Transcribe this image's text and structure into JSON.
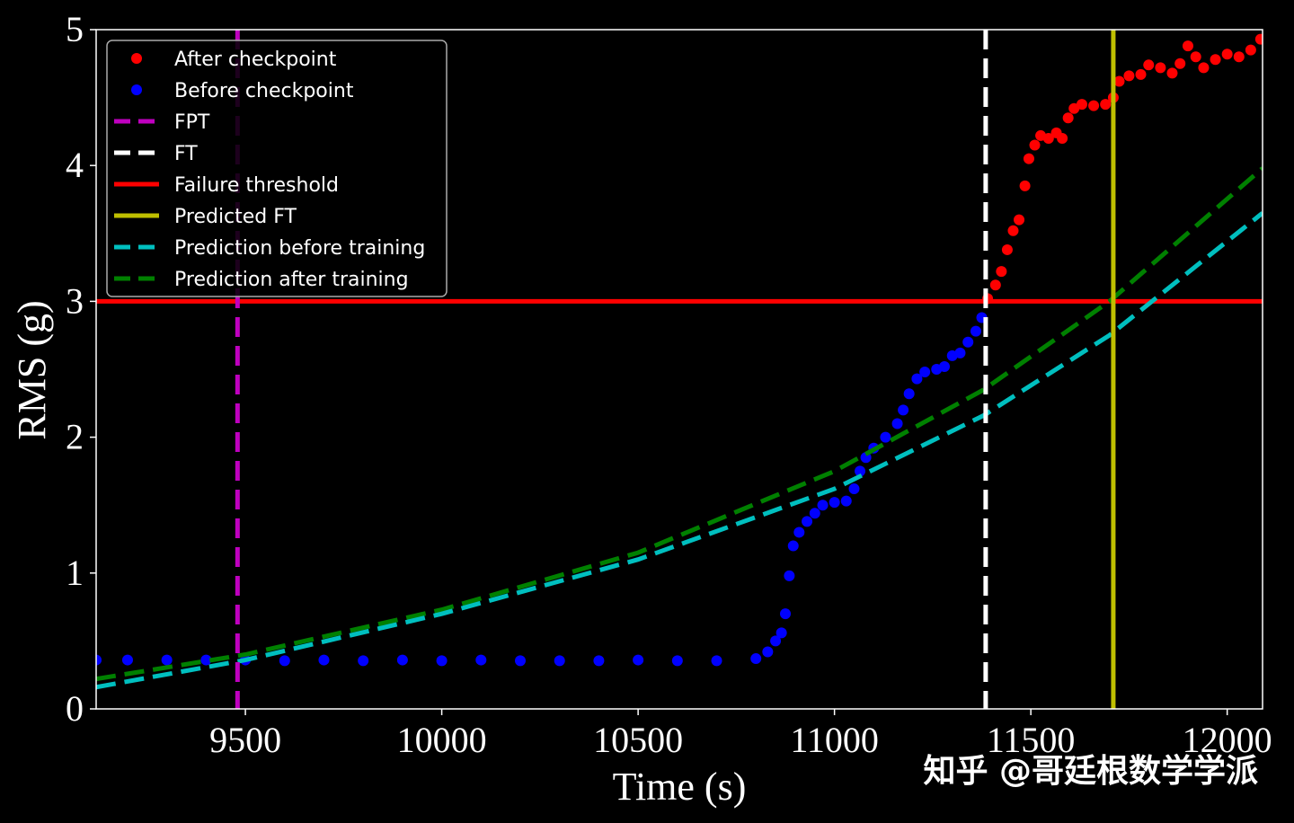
{
  "chart_data": {
    "type": "line",
    "xlabel": "Time (s)",
    "ylabel": "RMS (g)",
    "xlim": [
      9120,
      12090
    ],
    "ylim": [
      0,
      5
    ],
    "xticks": [
      9500,
      10000,
      10500,
      11000,
      11500,
      12000
    ],
    "yticks": [
      0,
      1,
      2,
      3,
      4,
      5
    ],
    "grid": false,
    "legend_position": "top-left",
    "background": "#000000",
    "legend": [
      {
        "label": "After checkpoint",
        "kind": "scatter",
        "color": "#ff0000"
      },
      {
        "label": "Before checkpoint",
        "kind": "scatter",
        "color": "#0000ff"
      },
      {
        "label": "FPT",
        "kind": "dashed",
        "color": "#bf00bf"
      },
      {
        "label": "FT",
        "kind": "dashed",
        "color": "#ffffff"
      },
      {
        "label": "Failure threshold",
        "kind": "solid",
        "color": "#ff0000"
      },
      {
        "label": "Predicted FT",
        "kind": "solid",
        "color": "#bfbf00"
      },
      {
        "label": "Prediction before training",
        "kind": "dashed",
        "color": "#00bfbf"
      },
      {
        "label": "Prediction after training",
        "kind": "dashed",
        "color": "#008000"
      }
    ],
    "series": {
      "before_checkpoint": {
        "color": "#0000ff",
        "points": [
          [
            9120,
            0.36
          ],
          [
            9200,
            0.36
          ],
          [
            9300,
            0.36
          ],
          [
            9400,
            0.36
          ],
          [
            9500,
            0.36
          ],
          [
            9600,
            0.355
          ],
          [
            9700,
            0.36
          ],
          [
            9800,
            0.355
          ],
          [
            9900,
            0.36
          ],
          [
            10000,
            0.355
          ],
          [
            10100,
            0.36
          ],
          [
            10200,
            0.355
          ],
          [
            10300,
            0.355
          ],
          [
            10400,
            0.355
          ],
          [
            10500,
            0.36
          ],
          [
            10600,
            0.355
          ],
          [
            10700,
            0.355
          ],
          [
            10800,
            0.37
          ],
          [
            10830,
            0.42
          ],
          [
            10850,
            0.5
          ],
          [
            10865,
            0.56
          ],
          [
            10875,
            0.7
          ],
          [
            10885,
            0.98
          ],
          [
            10895,
            1.2
          ],
          [
            10910,
            1.3
          ],
          [
            10930,
            1.38
          ],
          [
            10950,
            1.44
          ],
          [
            10970,
            1.5
          ],
          [
            11000,
            1.52
          ],
          [
            11030,
            1.53
          ],
          [
            11050,
            1.62
          ],
          [
            11065,
            1.75
          ],
          [
            11080,
            1.85
          ],
          [
            11100,
            1.92
          ],
          [
            11130,
            2.0
          ],
          [
            11160,
            2.1
          ],
          [
            11175,
            2.2
          ],
          [
            11190,
            2.32
          ],
          [
            11210,
            2.43
          ],
          [
            11230,
            2.48
          ],
          [
            11260,
            2.5
          ],
          [
            11280,
            2.52
          ],
          [
            11300,
            2.6
          ],
          [
            11320,
            2.62
          ],
          [
            11340,
            2.7
          ],
          [
            11360,
            2.78
          ],
          [
            11375,
            2.88
          ]
        ]
      },
      "after_checkpoint": {
        "color": "#ff0000",
        "points": [
          [
            11390,
            3.02
          ],
          [
            11410,
            3.12
          ],
          [
            11425,
            3.22
          ],
          [
            11440,
            3.38
          ],
          [
            11455,
            3.52
          ],
          [
            11470,
            3.6
          ],
          [
            11485,
            3.85
          ],
          [
            11495,
            4.05
          ],
          [
            11510,
            4.15
          ],
          [
            11525,
            4.22
          ],
          [
            11545,
            4.2
          ],
          [
            11565,
            4.24
          ],
          [
            11580,
            4.2
          ],
          [
            11595,
            4.35
          ],
          [
            11610,
            4.42
          ],
          [
            11630,
            4.45
          ],
          [
            11660,
            4.44
          ],
          [
            11690,
            4.45
          ],
          [
            11710,
            4.5
          ],
          [
            11725,
            4.62
          ],
          [
            11750,
            4.66
          ],
          [
            11780,
            4.67
          ],
          [
            11800,
            4.74
          ],
          [
            11830,
            4.72
          ],
          [
            11860,
            4.68
          ],
          [
            11880,
            4.75
          ],
          [
            11900,
            4.88
          ],
          [
            11920,
            4.8
          ],
          [
            11940,
            4.72
          ],
          [
            11970,
            4.78
          ],
          [
            12000,
            4.82
          ],
          [
            12030,
            4.8
          ],
          [
            12060,
            4.85
          ],
          [
            12085,
            4.93
          ]
        ]
      },
      "prediction_before_training": {
        "color": "#00bfbf",
        "points": [
          [
            9120,
            0.16
          ],
          [
            9500,
            0.36
          ],
          [
            10000,
            0.7
          ],
          [
            10500,
            1.1
          ],
          [
            11000,
            1.62
          ],
          [
            11380,
            2.16
          ],
          [
            11700,
            2.75
          ],
          [
            12090,
            3.65
          ]
        ]
      },
      "prediction_after_training": {
        "color": "#008000",
        "points": [
          [
            9120,
            0.22
          ],
          [
            9500,
            0.4
          ],
          [
            10000,
            0.73
          ],
          [
            10500,
            1.15
          ],
          [
            11000,
            1.75
          ],
          [
            11380,
            2.35
          ],
          [
            11700,
            3.0
          ],
          [
            12090,
            3.98
          ]
        ]
      },
      "failure_threshold": {
        "y": 3,
        "color": "#ff0000"
      },
      "fpt": {
        "x": 9480,
        "color": "#bf00bf"
      },
      "ft": {
        "x": 11385,
        "color": "#ffffff"
      },
      "predicted_ft": {
        "x": 11710,
        "color": "#bfbf00"
      }
    }
  },
  "watermark": "知乎 @哥廷根数学学派"
}
